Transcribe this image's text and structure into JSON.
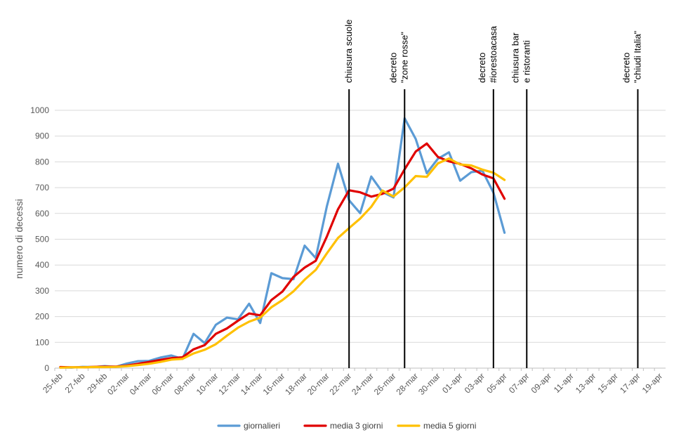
{
  "chart_data": {
    "type": "line",
    "title": "",
    "xlabel": "",
    "ylabel": "numero di decessi",
    "ylim": [
      0,
      1000
    ],
    "yticks": [
      0,
      100,
      200,
      300,
      400,
      500,
      600,
      700,
      800,
      900,
      1000
    ],
    "grid": "horizontal",
    "legend_position": "bottom",
    "categories": [
      "25-feb",
      "26-feb",
      "27-feb",
      "28-feb",
      "29-feb",
      "01-mar",
      "02-mar",
      "03-mar",
      "04-mar",
      "05-mar",
      "06-mar",
      "07-mar",
      "08-mar",
      "09-mar",
      "10-mar",
      "11-mar",
      "12-mar",
      "13-mar",
      "14-mar",
      "15-mar",
      "16-mar",
      "17-mar",
      "18-mar",
      "19-mar",
      "20-mar",
      "21-mar",
      "22-mar",
      "23-mar",
      "24-mar",
      "25-mar",
      "26-mar",
      "27-mar",
      "28-mar",
      "29-mar",
      "30-mar",
      "31-mar",
      "01-apr",
      "02-apr",
      "03-apr",
      "04-apr",
      "05-apr",
      "06-apr",
      "07-apr",
      "08-apr",
      "09-apr",
      "10-apr",
      "11-apr",
      "12-apr",
      "13-apr",
      "14-apr",
      "15-apr",
      "16-apr",
      "17-apr",
      "18-apr",
      "19-apr"
    ],
    "x_tick_labels": [
      "25-feb",
      "27-feb",
      "29-feb",
      "02-mar",
      "04-mar",
      "06-mar",
      "08-mar",
      "10-mar",
      "12-mar",
      "14-mar",
      "16-mar",
      "18-mar",
      "20-mar",
      "22-mar",
      "24-mar",
      "26-mar",
      "28-mar",
      "30-mar",
      "01-apr",
      "03-apr",
      "05-apr",
      "07-apr",
      "09-apr",
      "11-apr",
      "13-apr",
      "15-apr",
      "17-apr",
      "19-apr"
    ],
    "series": [
      {
        "name": "giornalieri",
        "color": "#5b9bd5",
        "values": [
          3,
          2,
          5,
          4,
          8,
          5,
          18,
          27,
          28,
          41,
          49,
          36,
          133,
          97,
          168,
          196,
          189,
          250,
          175,
          368,
          349,
          345,
          475,
          427,
          627,
          793,
          651,
          601,
          743,
          683,
          662,
          969,
          889,
          756,
          812,
          837,
          727,
          760,
          766,
          681,
          525,
          null,
          null,
          null,
          null,
          null,
          null,
          null,
          null,
          null,
          null,
          null,
          null,
          null,
          null
        ]
      },
      {
        "name": "media 3 giorni",
        "color": "#e00000",
        "values": [
          4,
          3,
          3,
          5,
          6,
          6,
          10,
          17,
          24,
          32,
          39,
          42,
          73,
          89,
          133,
          154,
          184,
          212,
          205,
          264,
          297,
          354,
          390,
          416,
          510,
          616,
          690,
          682,
          665,
          676,
          696,
          771,
          840,
          871,
          819,
          802,
          792,
          775,
          751,
          736,
          657,
          null,
          null,
          null,
          null,
          null,
          null,
          null,
          null,
          null,
          null,
          null,
          null,
          null,
          null
        ]
      },
      {
        "name": "media 5 giorni",
        "color": "#ffc000",
        "values": [
          2,
          3,
          3,
          4,
          4,
          5,
          8,
          12,
          17,
          24,
          33,
          36,
          57,
          71,
          93,
          126,
          157,
          180,
          196,
          236,
          264,
          298,
          343,
          381,
          445,
          505,
          543,
          580,
          626,
          689,
          666,
          701,
          745,
          742,
          794,
          813,
          790,
          786,
          770,
          758,
          730,
          null,
          null,
          null,
          null,
          null,
          null,
          null,
          null,
          null,
          null,
          null,
          null,
          null,
          null
        ]
      }
    ],
    "annotations": [
      {
        "date": "22-mar",
        "lines": [
          "chiusura scuole"
        ]
      },
      {
        "date": "27-mar",
        "lines": [
          "decreto",
          "\"zone rosse\""
        ]
      },
      {
        "date": "04-apr",
        "lines": [
          "decreto",
          "#iorestoacasa"
        ]
      },
      {
        "date": "07-apr",
        "lines": [
          "chiusura bar",
          "e ristoranti"
        ]
      },
      {
        "date": "17-apr",
        "lines": [
          "decreto",
          "\"chiudi Italia\""
        ]
      }
    ]
  }
}
